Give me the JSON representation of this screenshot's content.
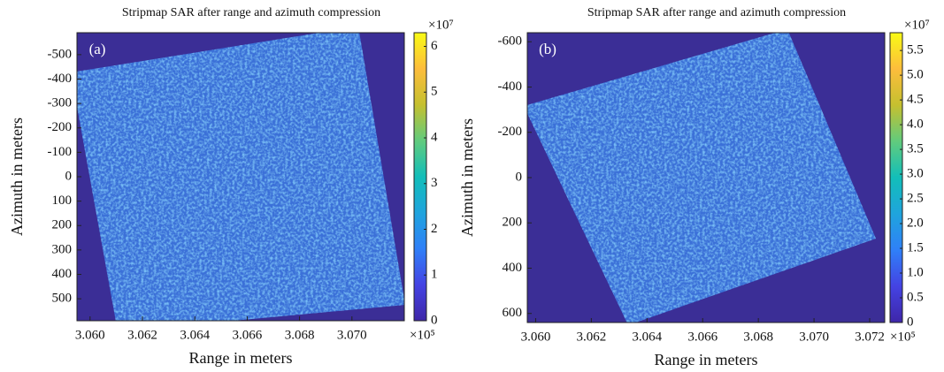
{
  "chart_data": [
    {
      "type": "heatmap",
      "title": "Stripmap SAR after range and azimuth compression",
      "panel_label": "(a)",
      "xlabel": "Range in meters",
      "ylabel": "Azimuth in meters",
      "x_exponent": "×10⁵",
      "colorbar_exponent": "×10⁷",
      "xlim": [
        3.0595,
        3.072
      ],
      "xticks": [
        {
          "value": 3.06,
          "label": "3.060"
        },
        {
          "value": 3.062,
          "label": "3.062"
        },
        {
          "value": 3.064,
          "label": "3.064"
        },
        {
          "value": 3.066,
          "label": "3.066"
        },
        {
          "value": 3.068,
          "label": "3.068"
        },
        {
          "value": 3.07,
          "label": "3.070"
        }
      ],
      "ylim": [
        590,
        -590
      ],
      "yticks": [
        -500,
        -400,
        -300,
        -200,
        -100,
        0,
        100,
        200,
        300,
        400,
        500
      ],
      "clim": [
        0,
        6.3
      ],
      "cticks": [
        0,
        1,
        2,
        3,
        4,
        5,
        6
      ],
      "colormap": [
        "#3e26a8",
        "#4443e3",
        "#2f80f8",
        "#1fa4dd",
        "#12beb9",
        "#61cb7d",
        "#c5c02f",
        "#fdbd3c",
        "#f9fb15"
      ]
    },
    {
      "type": "heatmap",
      "title": "Stripmap SAR after range and azimuth compression",
      "panel_label": "(b)",
      "xlabel": "Range in meters",
      "ylabel": "Azimuth in meters",
      "x_exponent": "×10⁵",
      "colorbar_exponent": "×10⁷",
      "xlim": [
        3.0597,
        3.07254
      ],
      "xticks": [
        {
          "value": 3.06,
          "label": "3.060"
        },
        {
          "value": 3.062,
          "label": "3.062"
        },
        {
          "value": 3.064,
          "label": "3.064"
        },
        {
          "value": 3.066,
          "label": "3.066"
        },
        {
          "value": 3.068,
          "label": "3.068"
        },
        {
          "value": 3.07,
          "label": "3.070"
        },
        {
          "value": 3.072,
          "label": "3.072"
        }
      ],
      "ylim": [
        640,
        -640
      ],
      "yticks": [
        -600,
        -400,
        -200,
        0,
        200,
        400,
        600
      ],
      "clim": [
        0,
        5.86
      ],
      "cticks": [
        0,
        0.5,
        {
          "value": 1,
          "label": "1.0"
        },
        1.5,
        {
          "value": 2,
          "label": "2.0"
        },
        2.5,
        {
          "value": 3,
          "label": "3.0"
        },
        3.5,
        {
          "value": 4,
          "label": "4.0"
        },
        4.5,
        {
          "value": 5,
          "label": "5.0"
        },
        5.5
      ],
      "colormap": [
        "#3e26a8",
        "#4443e3",
        "#2f80f8",
        "#1fa4dd",
        "#12beb9",
        "#61cb7d",
        "#c5c02f",
        "#fdbd3c",
        "#f9fb15"
      ]
    }
  ]
}
